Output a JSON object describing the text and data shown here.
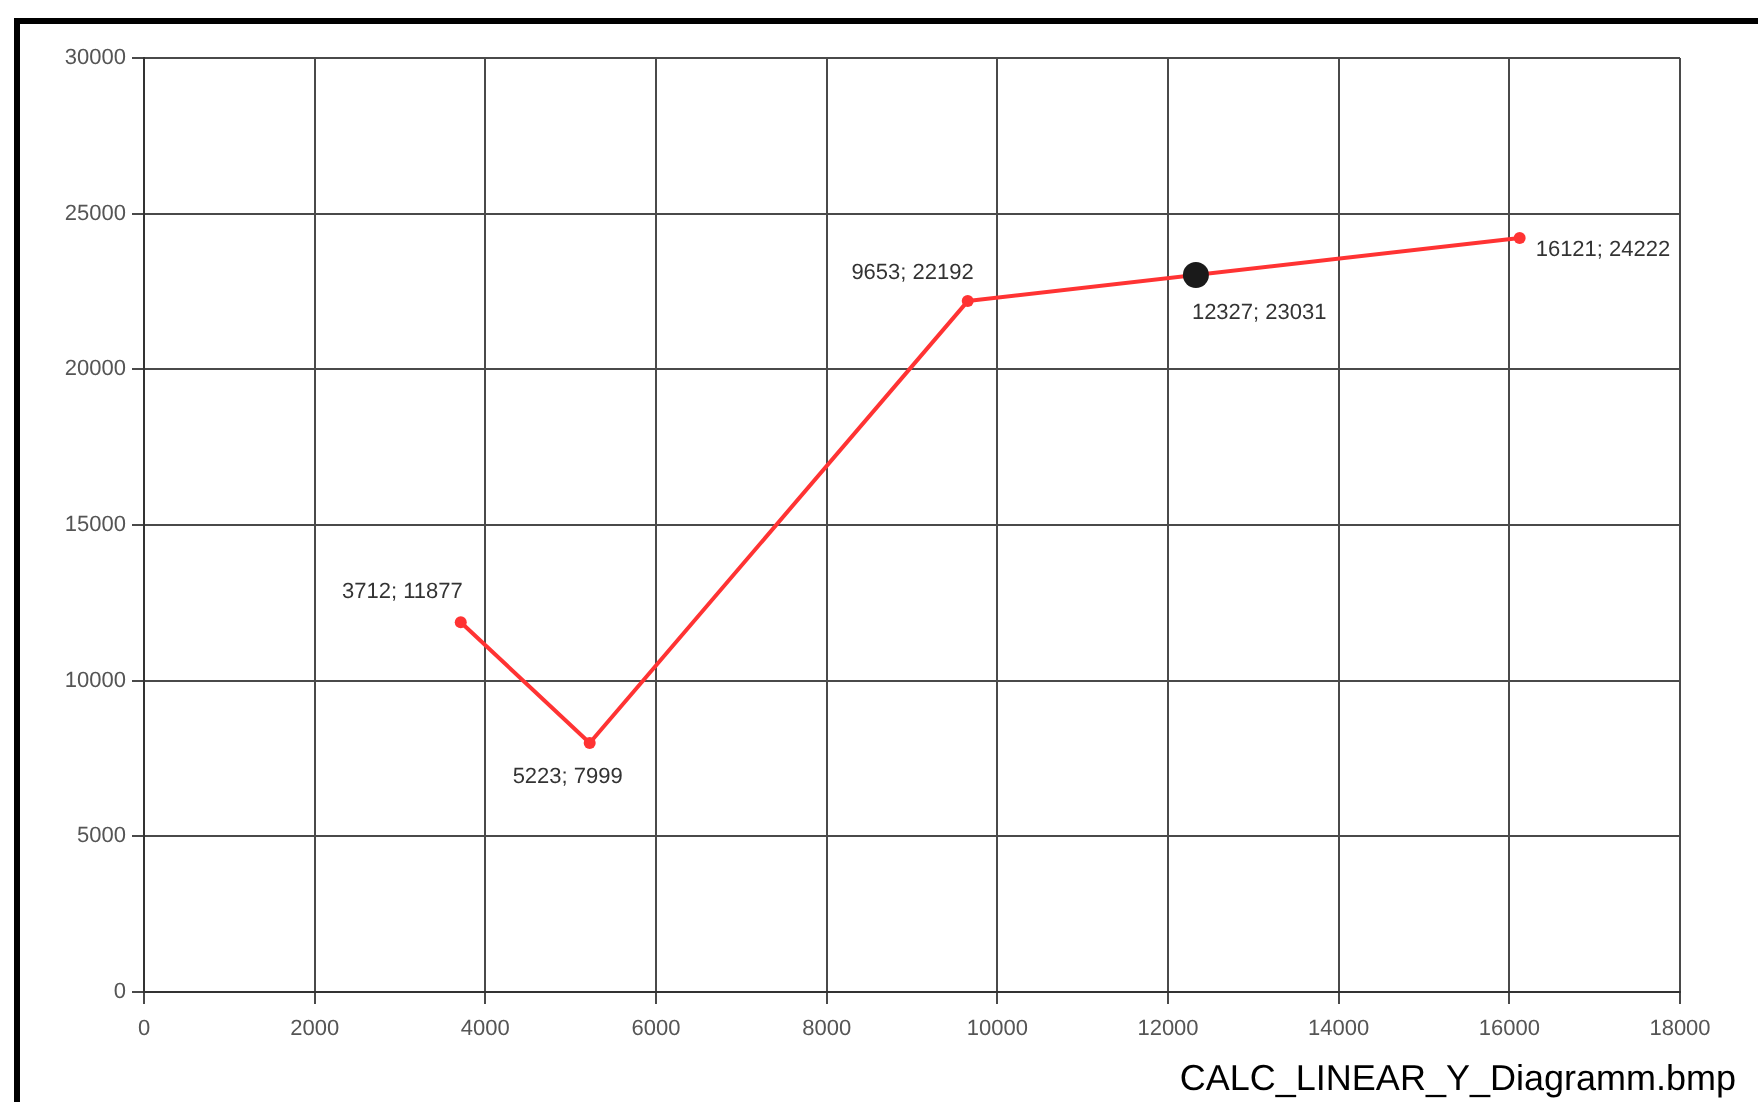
{
  "chart_data": {
    "type": "line",
    "xlim": [
      0,
      18000
    ],
    "xticks": [
      0,
      2000,
      4000,
      6000,
      8000,
      10000,
      12000,
      14000,
      16000,
      18000
    ],
    "ylim": [
      0,
      30000
    ],
    "yticks": [
      0,
      5000,
      10000,
      15000,
      20000,
      25000,
      30000
    ],
    "grid": true,
    "marker": "circle",
    "line_style": "solid",
    "series": [
      {
        "color": "#ff3333",
        "x": [
          3712,
          5223,
          9653,
          16121
        ],
        "values": [
          11877,
          7999,
          22192,
          24222
        ],
        "value_labels": [
          "3712; 11877",
          "5223; 7999",
          "9653; 22192",
          "16121; 24222"
        ]
      },
      {
        "type": "scatter",
        "color": "#1a1a1a",
        "x": [
          12327
        ],
        "values": [
          23031
        ],
        "value_labels": [
          "12327; 23031"
        ]
      }
    ],
    "annotations": [
      "CALC_LINEAR_Y_Diagramm.bmp"
    ]
  }
}
